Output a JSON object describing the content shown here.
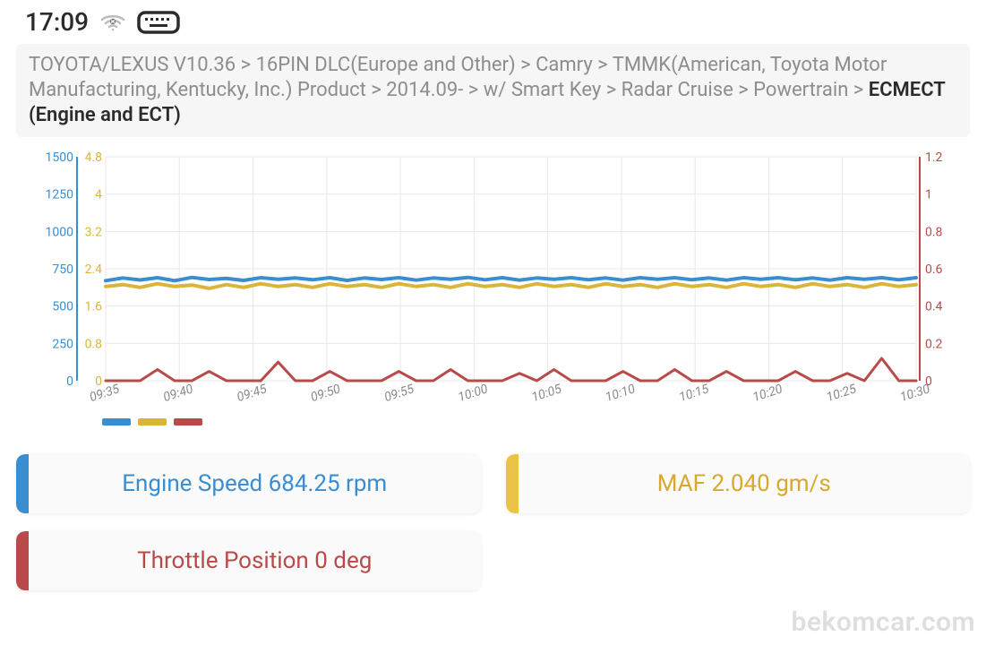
{
  "status": {
    "time": "17:09"
  },
  "breadcrumb": {
    "path": "TOYOTA/LEXUS V10.36 > 16PIN DLC(Europe and Other) > Camry > TMMK(American, Toyota Motor Manufacturing, Kentucky, Inc.) Product > 2014.09- > w/ Smart Key > Radar Cruise > Powertrain > ",
    "current": "ECMECT (Engine and ECT)"
  },
  "chart": {
    "type": "line",
    "background_color": "#ffffff",
    "grid_color": "#e9e9e9",
    "axis_left1": {
      "color": "#3a8ed0",
      "ticks": [
        0,
        250,
        500,
        750,
        1000,
        1250,
        1500
      ],
      "fontsize": 14
    },
    "axis_left2": {
      "color": "#dbb53a",
      "ticks": [
        0,
        0.8,
        1.6,
        2.4,
        3.2,
        4,
        4.8
      ],
      "fontsize": 14
    },
    "axis_right": {
      "color": "#b94a4a",
      "ticks": [
        0,
        0.2,
        0.4,
        0.6,
        0.8,
        1,
        1.2
      ],
      "fontsize": 14
    },
    "x_labels": [
      "09:35",
      "09:40",
      "09:45",
      "09:50",
      "09:55",
      "10:00",
      "10:05",
      "10:10",
      "10:15",
      "10:20",
      "10:25",
      "10:30"
    ],
    "x_label_fontsize": 14,
    "x_label_color": "#8a8a8a",
    "series": [
      {
        "name": "engine_speed",
        "color": "#3a8ed0",
        "stroke_width": 4,
        "scale": "left1",
        "values": [
          670,
          688,
          675,
          690,
          670,
          692,
          678,
          685,
          672,
          690,
          680,
          688,
          676,
          690,
          672,
          688,
          678,
          690,
          674,
          688,
          680,
          692,
          676,
          690,
          674,
          688,
          680,
          690,
          676,
          688,
          674,
          690,
          680,
          690,
          676,
          688,
          674,
          690,
          680,
          690,
          676,
          688,
          674,
          690,
          680,
          690,
          676,
          690
        ]
      },
      {
        "name": "maf",
        "color": "#dbb53a",
        "stroke_width": 4,
        "scale": "left2",
        "values": [
          2.02,
          2.06,
          2.0,
          2.08,
          2.02,
          2.05,
          1.98,
          2.06,
          2.0,
          2.08,
          2.02,
          2.06,
          2.0,
          2.08,
          2.02,
          2.06,
          2.0,
          2.08,
          2.02,
          2.06,
          2.0,
          2.08,
          2.02,
          2.06,
          2.0,
          2.08,
          2.02,
          2.06,
          2.0,
          2.08,
          2.02,
          2.06,
          2.0,
          2.08,
          2.02,
          2.06,
          2.0,
          2.08,
          2.02,
          2.06,
          2.0,
          2.08,
          2.02,
          2.06,
          2.0,
          2.08,
          2.02,
          2.06
        ]
      },
      {
        "name": "throttle",
        "color": "#b94a4a",
        "stroke_width": 3,
        "scale": "right",
        "values": [
          0,
          0,
          0,
          0.06,
          0,
          0,
          0.05,
          0,
          0,
          0,
          0.1,
          0,
          0,
          0.05,
          0,
          0,
          0,
          0.05,
          0,
          0,
          0.06,
          0,
          0,
          0,
          0.04,
          0,
          0.06,
          0,
          0,
          0,
          0.05,
          0,
          0,
          0.06,
          0,
          0,
          0.05,
          0,
          0,
          0,
          0.05,
          0,
          0,
          0.04,
          0,
          0.12,
          0,
          0
        ]
      }
    ],
    "legend_swatches": [
      "#3a8ed0",
      "#dbb53a",
      "#b94a4a"
    ]
  },
  "metrics": [
    {
      "label": "Engine Speed 684.25 rpm",
      "stripe": "#3a8ed0",
      "text_color": "#3a8ed0"
    },
    {
      "label": "MAF 2.040 gm/s",
      "stripe": "#e9c247",
      "text_color": "#d7a92f"
    },
    {
      "label": "Throttle Position 0 deg",
      "stripe": "#b94a4a",
      "text_color": "#b94a4a"
    }
  ],
  "watermark": "bekomcar.com"
}
